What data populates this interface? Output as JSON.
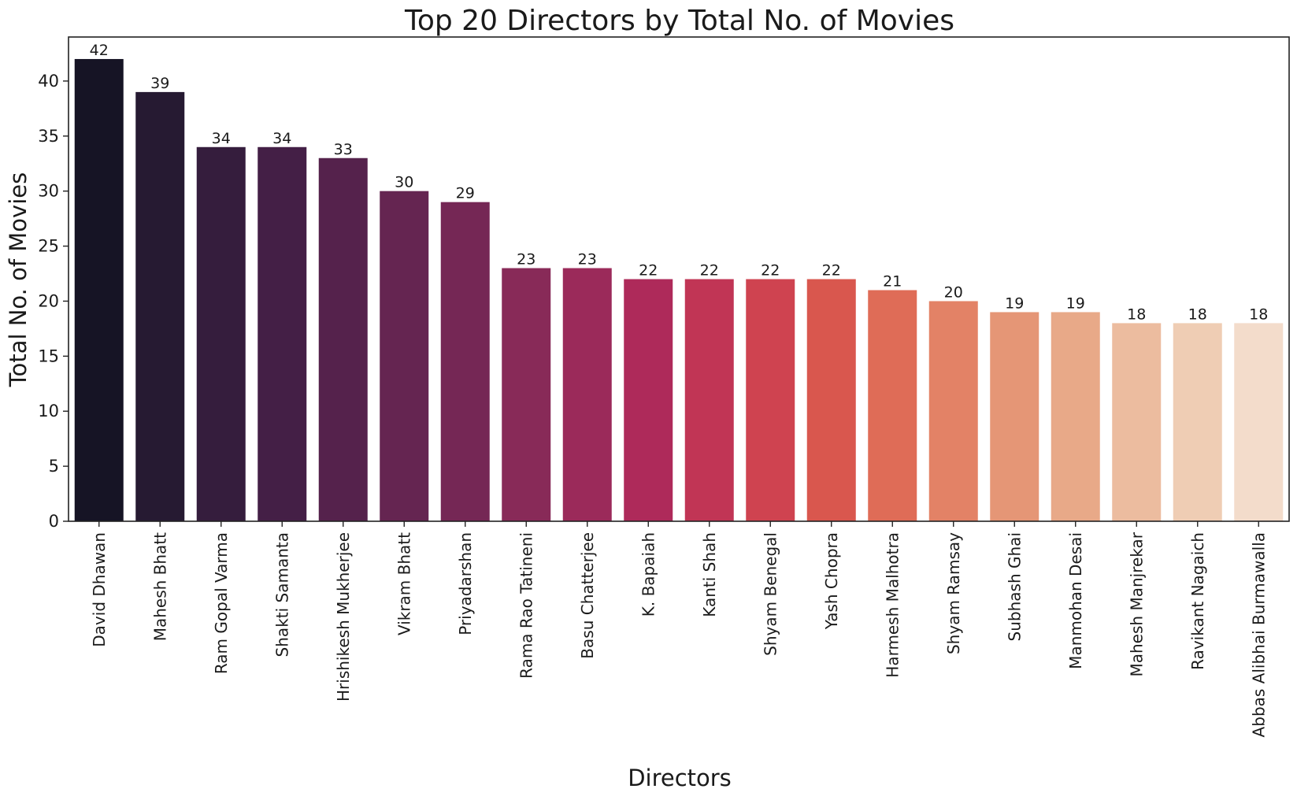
{
  "chart_data": {
    "type": "bar",
    "title": "Top 20 Directors by Total No. of Movies",
    "xlabel": "Directors",
    "ylabel": "Total No. of Movies",
    "ylim": [
      0,
      44
    ],
    "yticks": [
      0,
      5,
      10,
      15,
      20,
      25,
      30,
      35,
      40
    ],
    "grid": false,
    "categories": [
      "David Dhawan",
      "Mahesh Bhatt",
      "Ram Gopal Varma",
      "Shakti Samanta",
      "Hrishikesh Mukherjee",
      "Vikram Bhatt",
      "Priyadarshan",
      "Rama Rao Tatineni",
      "Basu Chatterjee",
      "K. Bapaiah",
      "Kanti Shah",
      "Shyam Benegal",
      "Yash Chopra",
      "Harmesh Malhotra",
      "Shyam Ramsay",
      "Subhash Ghai",
      "Manmohan Desai",
      "Mahesh Manjrekar",
      "Ravikant Nagaich",
      "Abbas Alibhai Burmawalla"
    ],
    "values": [
      42,
      39,
      34,
      34,
      33,
      30,
      29,
      23,
      23,
      22,
      22,
      22,
      22,
      21,
      20,
      19,
      19,
      18,
      18,
      18
    ],
    "colors": [
      "#161425",
      "#261a32",
      "#351d3d",
      "#441f46",
      "#55224c",
      "#652551",
      "#752755",
      "#882a58",
      "#9b2a5a",
      "#ae2a5a",
      "#c13555",
      "#cf4350",
      "#d9574e",
      "#df6c57",
      "#e38266",
      "#e59676",
      "#e8a988",
      "#ecbc9f",
      "#efcdb4",
      "#f3dccb"
    ]
  }
}
